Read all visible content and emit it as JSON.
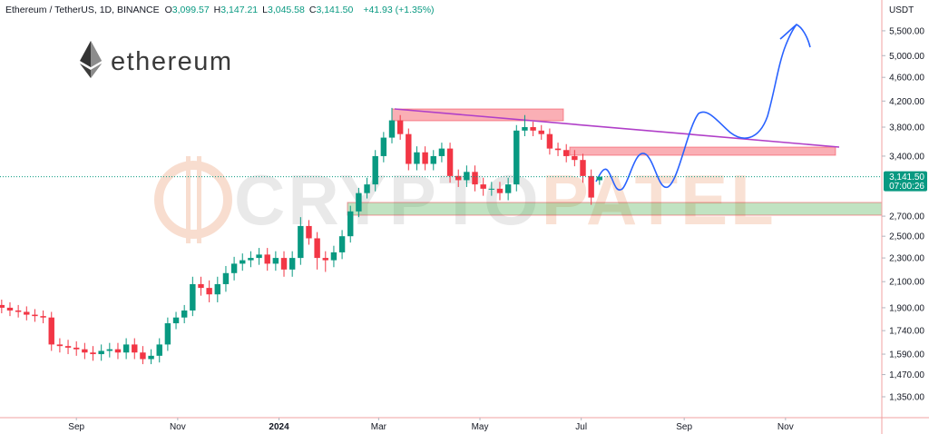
{
  "chart_data": {
    "type": "candlestick",
    "title": "Ethereum / TetherUS, 1D, BINANCE",
    "ohlc_legend": [
      {
        "key": "O",
        "text": "3,099.57"
      },
      {
        "key": "H",
        "text": "3,147.21"
      },
      {
        "key": "L",
        "text": "3,045.58"
      },
      {
        "key": "C",
        "text": "3,141.50"
      }
    ],
    "change": "+41.93 (+1.35%)",
    "logo_text": "ethereum",
    "watermark": [
      "CRYPTO",
      "PATEL"
    ],
    "y_unit": "USDT",
    "log_scale": true,
    "up_color": "#089981",
    "down_color": "#f23645",
    "last_price": {
      "value": 3141.5,
      "label": "3,141.50"
    },
    "countdown": "07:00:26",
    "xlim": [
      -46,
      485
    ],
    "xticks": [
      {
        "value": 0,
        "label": "Sep"
      },
      {
        "value": 61,
        "label": "Nov"
      },
      {
        "value": 122,
        "label": "2024"
      },
      {
        "value": 182,
        "label": "Mar"
      },
      {
        "value": 243,
        "label": "May"
      },
      {
        "value": 304,
        "label": "Jul"
      },
      {
        "value": 366,
        "label": "Sep"
      },
      {
        "value": 427,
        "label": "Nov"
      }
    ],
    "ylim": [
      1246,
      6190
    ],
    "yticks": [
      {
        "value": 1350,
        "label": "1,350.00"
      },
      {
        "value": 1470,
        "label": "1,470.00"
      },
      {
        "value": 1590,
        "label": "1,590.00"
      },
      {
        "value": 1740,
        "label": "1,740.00"
      },
      {
        "value": 1900,
        "label": "1,900.00"
      },
      {
        "value": 2100,
        "label": "2,100.00"
      },
      {
        "value": 2300,
        "label": "2,300.00"
      },
      {
        "value": 2500,
        "label": "2,500.00"
      },
      {
        "value": 2700,
        "label": "2,700.00"
      },
      {
        "value": 3400,
        "label": "3,400.00"
      },
      {
        "value": 3800,
        "label": "3,800.00"
      },
      {
        "value": 4200,
        "label": "4,200.00"
      },
      {
        "value": 4600,
        "label": "4,600.00"
      },
      {
        "value": 5000,
        "label": "5,000.00"
      },
      {
        "value": 5500,
        "label": "5,500.00"
      }
    ],
    "x": [
      -45,
      -40,
      -35,
      -30,
      -25,
      -20,
      -15,
      -10,
      -5,
      0,
      5,
      10,
      15,
      20,
      25,
      30,
      35,
      40,
      45,
      50,
      55,
      60,
      65,
      70,
      75,
      80,
      85,
      90,
      95,
      100,
      105,
      110,
      115,
      120,
      125,
      130,
      135,
      140,
      145,
      150,
      155,
      160,
      165,
      170,
      175,
      180,
      185,
      190,
      195,
      200,
      205,
      210,
      215,
      220,
      225,
      230,
      235,
      240,
      245,
      250,
      255,
      260,
      265,
      270,
      275,
      280,
      285,
      290,
      295,
      300,
      305,
      310,
      315
    ],
    "open": [
      1920,
      1900,
      1880,
      1870,
      1850,
      1840,
      1830,
      1650,
      1640,
      1630,
      1620,
      1600,
      1590,
      1610,
      1620,
      1600,
      1650,
      1600,
      1560,
      1580,
      1650,
      1790,
      1830,
      1880,
      2080,
      2050,
      2000,
      2080,
      2170,
      2250,
      2280,
      2300,
      2330,
      2250,
      2300,
      2200,
      2300,
      2600,
      2480,
      2300,
      2280,
      2350,
      2500,
      2750,
      2950,
      3050,
      3400,
      3650,
      3900,
      3700,
      3300,
      3450,
      3300,
      3400,
      3500,
      3150,
      3100,
      3200,
      3050,
      3000,
      3000,
      2950,
      3050,
      3750,
      3800,
      3750,
      3700,
      3500,
      3480,
      3400,
      3350,
      3150,
      3099.57
    ],
    "high": [
      1960,
      1940,
      1920,
      1910,
      1890,
      1880,
      1870,
      1690,
      1680,
      1670,
      1660,
      1640,
      1650,
      1660,
      1660,
      1690,
      1690,
      1640,
      1620,
      1690,
      1830,
      1870,
      1920,
      2140,
      2140,
      2110,
      2140,
      2230,
      2310,
      2340,
      2360,
      2390,
      2390,
      2360,
      2360,
      2360,
      2690,
      2660,
      2540,
      2360,
      2410,
      2560,
      2810,
      3010,
      3130,
      3480,
      3730,
      4090,
      3980,
      3780,
      3530,
      3530,
      3480,
      3580,
      3580,
      3230,
      3280,
      3280,
      3130,
      3080,
      3080,
      3130,
      3830,
      3980,
      3880,
      3830,
      3780,
      3580,
      3560,
      3480,
      3430,
      3230,
      3147.21
    ],
    "low": [
      1860,
      1840,
      1830,
      1810,
      1800,
      1790,
      1610,
      1600,
      1590,
      1580,
      1560,
      1550,
      1550,
      1570,
      1560,
      1560,
      1560,
      1530,
      1530,
      1540,
      1610,
      1750,
      1790,
      1840,
      1990,
      1940,
      1940,
      2020,
      2110,
      2190,
      2220,
      2240,
      2190,
      2190,
      2140,
      2140,
      2240,
      2420,
      2200,
      2180,
      2220,
      2290,
      2440,
      2690,
      2890,
      2970,
      3320,
      3570,
      3620,
      3220,
      3220,
      3220,
      3220,
      3320,
      3070,
      3020,
      3020,
      2970,
      2920,
      2920,
      2870,
      2870,
      2970,
      3670,
      3670,
      3620,
      3420,
      3400,
      3320,
      3270,
      3070,
      2820,
      3045.58
    ],
    "close": [
      1900,
      1880,
      1870,
      1850,
      1840,
      1830,
      1650,
      1640,
      1630,
      1620,
      1600,
      1590,
      1610,
      1620,
      1600,
      1650,
      1600,
      1560,
      1580,
      1650,
      1790,
      1830,
      1880,
      2080,
      2050,
      2000,
      2080,
      2170,
      2250,
      2280,
      2300,
      2330,
      2250,
      2300,
      2200,
      2300,
      2600,
      2480,
      2300,
      2280,
      2350,
      2500,
      2750,
      2950,
      3050,
      3400,
      3650,
      3900,
      3700,
      3300,
      3450,
      3300,
      3400,
      3500,
      3150,
      3100,
      3200,
      3050,
      3000,
      3000,
      2950,
      3050,
      3750,
      3800,
      3750,
      3700,
      3500,
      3480,
      3400,
      3350,
      3150,
      2900,
      3141.5
    ]
  }
}
